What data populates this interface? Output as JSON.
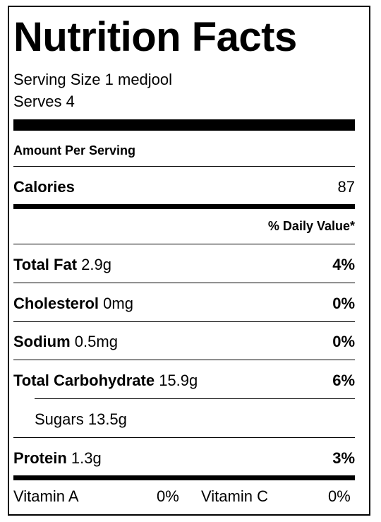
{
  "label": {
    "title": "Nutrition Facts",
    "serving_size_label": "Serving Size",
    "serving_size_value": "1 medjool",
    "serves_label": "Serves",
    "serves_value": "4",
    "amount_per_serving": "Amount Per Serving",
    "calories_label": "Calories",
    "calories_value": "87",
    "daily_value_header": "% Daily Value*",
    "nutrients": [
      {
        "name": "Total Fat",
        "amount": "2.9g",
        "dv": "4%"
      },
      {
        "name": "Cholesterol",
        "amount": "0mg",
        "dv": "0%"
      },
      {
        "name": "Sodium",
        "amount": "0.5mg",
        "dv": "0%"
      },
      {
        "name": "Total Carbohydrate",
        "amount": "15.9g",
        "dv": "6%"
      },
      {
        "name": "Sugars",
        "amount": "13.5g",
        "dv": ""
      },
      {
        "name": "Protein",
        "amount": "1.3g",
        "dv": "3%"
      }
    ],
    "vitamins": [
      {
        "name": "Vitamin A",
        "dv": "0%"
      },
      {
        "name": "Vitamin C",
        "dv": "0%"
      }
    ]
  }
}
